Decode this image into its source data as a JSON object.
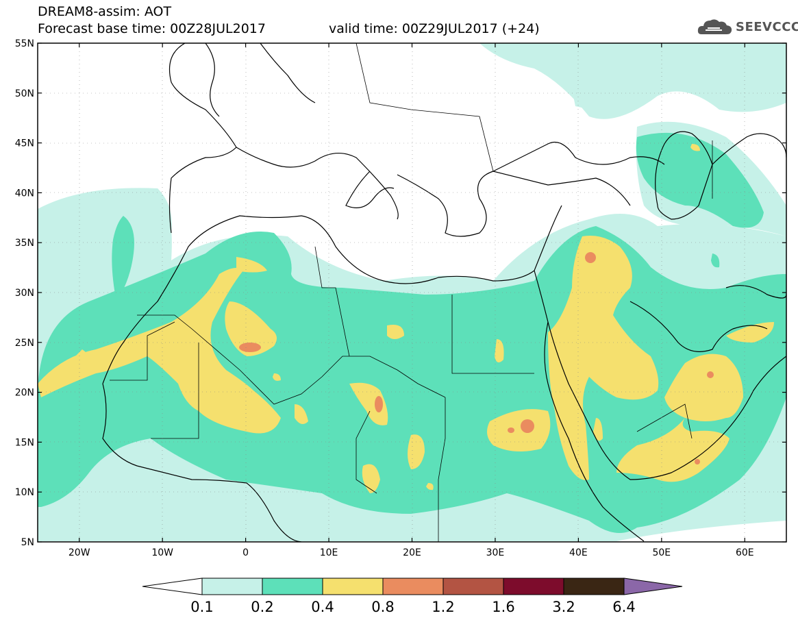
{
  "header": {
    "line1": "DREAM8-assim: AOT",
    "line2": "Forecast base time: 00Z28JUL2017",
    "valid": "valid time: 00Z29JUL2017 (+24)"
  },
  "logo": {
    "text": "SEEVCCC",
    "icon": "cloud-icon"
  },
  "map": {
    "lat_labels": [
      "55N",
      "50N",
      "45N",
      "40N",
      "35N",
      "30N",
      "25N",
      "20N",
      "15N",
      "10N",
      "5N"
    ],
    "lon_labels": [
      "20W",
      "10W",
      "0",
      "10E",
      "20E",
      "30E",
      "40E",
      "50E",
      "60E"
    ],
    "lon_range": [
      -25,
      65
    ],
    "lat_range": [
      5,
      55
    ]
  },
  "colorbar": {
    "levels": [
      "0.1",
      "0.2",
      "0.4",
      "0.8",
      "1.2",
      "1.6",
      "3.2",
      "6.4"
    ],
    "colors": [
      "#ffffff",
      "#c6f1e8",
      "#5de0b9",
      "#f5e06e",
      "#ea8c5f",
      "#b35443",
      "#7d0c2c",
      "#3a2614",
      "#8b67a8"
    ]
  }
}
